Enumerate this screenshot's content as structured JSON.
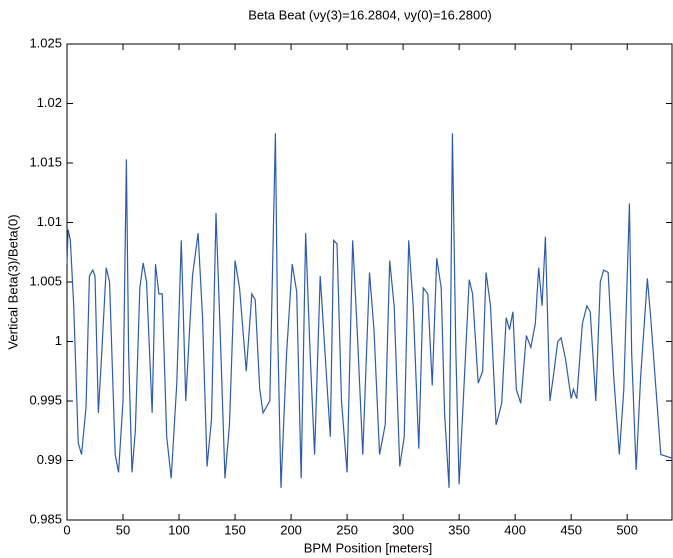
{
  "chart_data": {
    "type": "line",
    "title": "Beta Beat (νy(3)=16.2804, νy(0)=16.2800)",
    "x_label": "BPM Position [meters]",
    "y_label": "Vertical Beta(3)/Beta(0)",
    "xlim": [
      0,
      540
    ],
    "ylim": [
      0.985,
      1.025
    ],
    "xticks": [
      0,
      50,
      100,
      150,
      200,
      250,
      300,
      350,
      400,
      450,
      500
    ],
    "yticks": [
      0.985,
      0.99,
      0.995,
      1,
      1.005,
      1.01,
      1.015,
      1.02,
      1.025
    ],
    "grid": false,
    "x": [
      0,
      1,
      3,
      6,
      10,
      13,
      17,
      20,
      23,
      25,
      28,
      31,
      35,
      38,
      43,
      46,
      50,
      53,
      55,
      58,
      61,
      65,
      68,
      71,
      76,
      79,
      82,
      85,
      89,
      93,
      98,
      102,
      106,
      112,
      117,
      121,
      125,
      129,
      133,
      137,
      141,
      145,
      150,
      154,
      160,
      165,
      168,
      172,
      175,
      181,
      186,
      188,
      191,
      196,
      201,
      205,
      209,
      213,
      217,
      221,
      226,
      229,
      235,
      238,
      241,
      245,
      250,
      255,
      259,
      264,
      270,
      274,
      279,
      284,
      288,
      292,
      297,
      301,
      305,
      309,
      314,
      318,
      322,
      326,
      330,
      334,
      337,
      341,
      344,
      347,
      350,
      355,
      359,
      362,
      367,
      371,
      374,
      378,
      383,
      388,
      392,
      395,
      398,
      401,
      405,
      410,
      414,
      418,
      421,
      424,
      427,
      431,
      434,
      438,
      441,
      445,
      450,
      452,
      455,
      460,
      464,
      467,
      472,
      476,
      479,
      483,
      488,
      493,
      497,
      502,
      504,
      508,
      512,
      518,
      521,
      530,
      540
    ],
    "series": [
      {
        "color": "#2f5ca8",
        "values": [
          1.0065,
          1.0094,
          1.0085,
          1.003,
          0.9915,
          0.9905,
          0.9945,
          1.0055,
          1.006,
          1.0055,
          0.994,
          0.999,
          1.0062,
          1.005,
          0.9905,
          0.989,
          0.995,
          1.0153,
          0.999,
          0.989,
          0.9925,
          1.0045,
          1.0066,
          1.005,
          0.994,
          1.0065,
          1.004,
          1.004,
          0.992,
          0.9885,
          0.9965,
          1.0085,
          0.995,
          1.0055,
          1.0091,
          1.002,
          0.9895,
          0.9935,
          1.0108,
          1.0,
          0.9885,
          0.993,
          1.0068,
          1.0045,
          0.9975,
          1.004,
          1.0035,
          0.996,
          0.994,
          0.995,
          1.0175,
          1.001,
          0.9877,
          0.999,
          1.0065,
          1.0042,
          0.9885,
          1.0091,
          0.999,
          0.9905,
          1.0055,
          1.001,
          0.992,
          1.0085,
          1.0082,
          0.995,
          0.989,
          1.0085,
          1.001,
          0.9905,
          1.0058,
          1.001,
          0.9905,
          0.993,
          1.0068,
          1.003,
          0.9895,
          0.992,
          1.0085,
          1.003,
          0.991,
          1.0045,
          1.004,
          0.9963,
          1.007,
          1.0045,
          0.994,
          0.9877,
          1.0175,
          0.9995,
          0.988,
          0.9975,
          1.0052,
          1.004,
          0.9965,
          0.9975,
          1.0058,
          1.003,
          0.993,
          0.9948,
          1.002,
          1.001,
          1.0025,
          0.996,
          0.9948,
          1.0005,
          0.9995,
          1.0015,
          1.0062,
          1.003,
          1.0088,
          0.995,
          0.997,
          1.0,
          1.0003,
          0.9985,
          0.9952,
          0.996,
          0.9952,
          1.0015,
          1.003,
          1.0025,
          0.995,
          1.005,
          1.006,
          1.0058,
          0.997,
          0.9905,
          0.996,
          1.0116,
          0.999,
          0.9892,
          0.997,
          1.0053,
          1.002,
          0.9905,
          0.9902
        ]
      }
    ]
  }
}
